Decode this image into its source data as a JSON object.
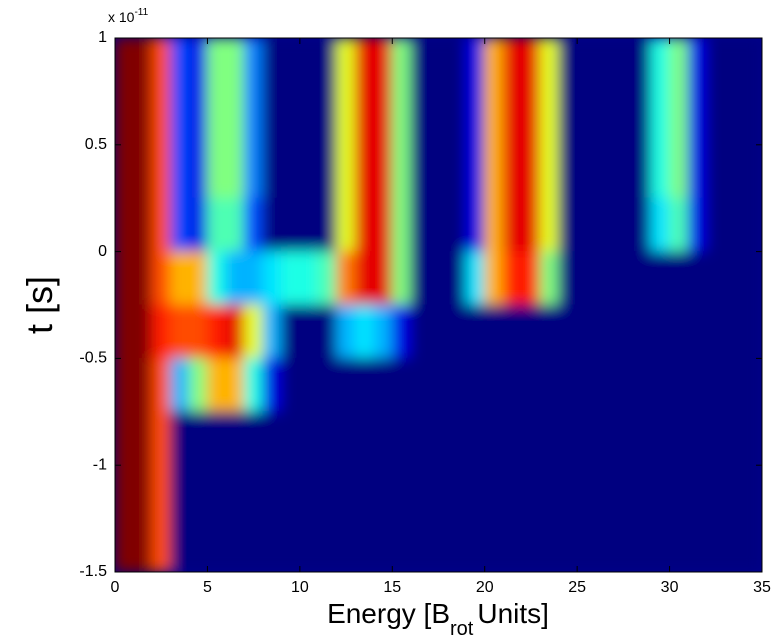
{
  "chart_data": {
    "type": "heatmap",
    "exponent_base": "x 10",
    "exponent": "-11",
    "xlabel": "Energy [B",
    "xlabel_subscript": "rot",
    "xlabel_end": "Units]",
    "ylabel": "t [s]",
    "xlim": [
      0,
      35
    ],
    "xticks": [
      0,
      5,
      10,
      15,
      20,
      25,
      30,
      35
    ],
    "ylim": [
      -1.5,
      1
    ],
    "yticks": [
      -1.5,
      -1,
      -0.5,
      0,
      0.5,
      1
    ],
    "y": [
      0.875,
      0.625,
      0.375,
      0.125,
      -0.125,
      -0.375,
      -0.625,
      -0.875,
      -1.125,
      -1.375
    ],
    "z": [
      [
        1,
        1,
        0.8,
        0.2,
        0.1,
        0.5,
        0.5,
        0.25,
        0,
        0,
        0,
        0,
        0.6,
        0.9,
        0.9,
        0.5,
        0,
        0,
        0,
        0.1,
        0.7,
        0.9,
        0.9,
        0.6,
        0,
        0,
        0,
        0,
        0,
        0.4,
        0.5,
        0.1,
        0,
        0,
        0
      ],
      [
        1,
        1,
        0.8,
        0.2,
        0.1,
        0.5,
        0.5,
        0.25,
        0,
        0,
        0,
        0,
        0.6,
        0.9,
        0.9,
        0.5,
        0,
        0,
        0,
        0.1,
        0.7,
        0.9,
        0.9,
        0.6,
        0,
        0,
        0,
        0,
        0,
        0.4,
        0.5,
        0.1,
        0,
        0,
        0
      ],
      [
        1,
        1,
        0.8,
        0.2,
        0.1,
        0.5,
        0.5,
        0.25,
        0,
        0,
        0,
        0,
        0.6,
        0.9,
        0.9,
        0.5,
        0,
        0,
        0,
        0.1,
        0.7,
        0.9,
        0.9,
        0.6,
        0,
        0,
        0,
        0,
        0,
        0.4,
        0.5,
        0.1,
        0,
        0,
        0
      ],
      [
        1,
        1,
        0.8,
        0.2,
        0.1,
        0.45,
        0.45,
        0.2,
        0,
        0,
        0,
        0,
        0.6,
        0.9,
        0.9,
        0.5,
        0,
        0,
        0,
        0.1,
        0.7,
        0.9,
        0.9,
        0.6,
        0,
        0,
        0,
        0,
        0,
        0.35,
        0.45,
        0.1,
        0,
        0,
        0
      ],
      [
        1,
        1,
        0.8,
        0.7,
        0.7,
        0.4,
        0.3,
        0.3,
        0.35,
        0.4,
        0.4,
        0.45,
        0.75,
        0.9,
        0.9,
        0.5,
        0,
        0,
        0,
        0.35,
        0.7,
        0.85,
        0.85,
        0.5,
        0,
        0,
        0,
        0,
        0,
        0,
        0,
        0,
        0,
        0,
        0
      ],
      [
        1,
        1,
        0.85,
        0.8,
        0.8,
        0.85,
        0.9,
        0.6,
        0.3,
        0,
        0,
        0,
        0.3,
        0.35,
        0.3,
        0.1,
        0,
        0,
        0,
        0,
        0,
        0,
        0,
        0,
        0,
        0,
        0,
        0,
        0,
        0,
        0,
        0,
        0,
        0,
        0
      ],
      [
        1,
        1,
        0.8,
        0.3,
        0.5,
        0.7,
        0.7,
        0.4,
        0.1,
        0,
        0,
        0,
        0,
        0,
        0,
        0,
        0,
        0,
        0,
        0,
        0,
        0,
        0,
        0,
        0,
        0,
        0,
        0,
        0,
        0,
        0,
        0,
        0,
        0,
        0
      ],
      [
        1,
        1,
        0.8,
        0,
        0,
        0,
        0,
        0,
        0,
        0,
        0,
        0,
        0,
        0,
        0,
        0,
        0,
        0,
        0,
        0,
        0,
        0,
        0,
        0,
        0,
        0,
        0,
        0,
        0,
        0,
        0,
        0,
        0,
        0,
        0
      ],
      [
        1,
        1,
        0.8,
        0,
        0,
        0,
        0,
        0,
        0,
        0,
        0,
        0,
        0,
        0,
        0,
        0,
        0,
        0,
        0,
        0,
        0,
        0,
        0,
        0,
        0,
        0,
        0,
        0,
        0,
        0,
        0,
        0,
        0,
        0,
        0
      ],
      [
        1,
        1,
        0.8,
        0,
        0,
        0,
        0,
        0,
        0,
        0,
        0,
        0,
        0,
        0,
        0,
        0,
        0,
        0,
        0,
        0,
        0,
        0,
        0,
        0,
        0,
        0,
        0,
        0,
        0,
        0,
        0,
        0,
        0,
        0,
        0
      ]
    ]
  }
}
